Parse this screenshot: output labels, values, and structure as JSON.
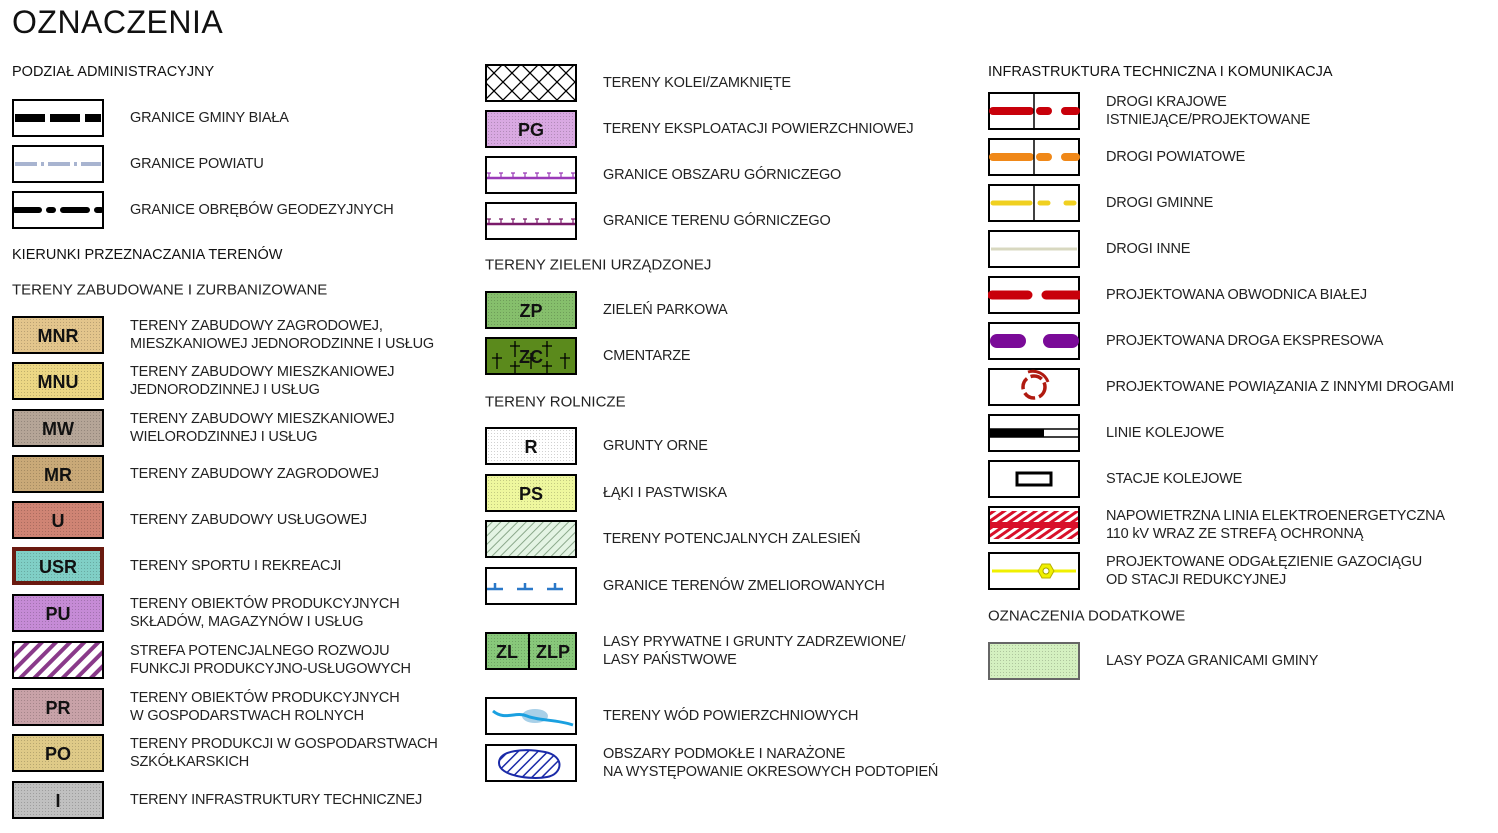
{
  "title": "OZNACZENIA",
  "columns": [
    [
      {
        "type": "header",
        "text": "PODZIAŁ ADMINISTRACYJNY"
      },
      {
        "type": "item",
        "swatch": "gmina-boundary-line",
        "label": "GRANICE GMINY BIAŁA"
      },
      {
        "type": "item",
        "swatch": "powiat-boundary-line",
        "label": "GRANICE POWIATU"
      },
      {
        "type": "item",
        "swatch": "precinct-boundary-line",
        "label": "GRANICE OBRĘBÓW GEODEZYJNYCH"
      },
      {
        "type": "header",
        "text": "KIERUNKI PRZEZNACZANIA TERENÓW"
      },
      {
        "type": "sub",
        "text": "TERENY ZABUDOWANE I ZURBANIZOWANE"
      },
      {
        "type": "item",
        "swatch": "fill",
        "code": "MNR",
        "color": "#e3c58c",
        "label": "TERENY ZABUDOWY ZAGRODOWEJ,\nMIESZKANIOWEJ JEDNORODZINNE I USŁUG"
      },
      {
        "type": "item",
        "swatch": "fill",
        "code": "MNU",
        "color": "#ecd784",
        "label": "TERENY ZABUDOWY MIESZKANIOWEJ\nJEDNORODZINNEJ I USŁUG"
      },
      {
        "type": "item",
        "swatch": "fill",
        "code": "MW",
        "color": "#b5a597",
        "label": "TERENY ZABUDOWY MIESZKANIOWEJ\nWIELORODZINNEJ I USŁUG"
      },
      {
        "type": "item",
        "swatch": "fill",
        "code": "MR",
        "color": "#c9a978",
        "label": "TERENY ZABUDOWY ZAGRODOWEJ"
      },
      {
        "type": "item",
        "swatch": "fill",
        "code": "U",
        "color": "#cf8474",
        "label": "TERENY ZABUDOWY USŁUGOWEJ"
      },
      {
        "type": "item",
        "swatch": "fill",
        "code": "USR",
        "color": "#80cfc6",
        "border": "#6a1a10",
        "label": "TERENY SPORTU I REKREACJI"
      },
      {
        "type": "item",
        "swatch": "fill",
        "code": "PU",
        "color": "#c68bd6",
        "label": "TERENY OBIEKTÓW PRODUKCYJNYCH\nSKŁADÓW, MAGAZYNÓW I USŁUG"
      },
      {
        "type": "item",
        "swatch": "purple-hatch",
        "color": "#8a3a8a",
        "label": "STREFA POTENCJALNEGO ROZWOJU\nFUNKCJI PRODUKCYJNO-USŁUGOWYCH"
      },
      {
        "type": "item",
        "swatch": "fill",
        "code": "PR",
        "color": "#c8a2a8",
        "label": "TERENY OBIEKTÓW PRODUKCYJNYCH\nW GOSPODARSTWACH ROLNYCH"
      },
      {
        "type": "item",
        "swatch": "fill",
        "code": "PO",
        "color": "#dfca88",
        "label": "TERENY PRODUKCJI W GOSPODARSTWACH\nSZKÓŁKARSKICH"
      },
      {
        "type": "item",
        "swatch": "fill",
        "code": "I",
        "color": "#c0c0c0",
        "label": "TERENY INFRASTRUKTURY TECHNICZNEJ"
      }
    ],
    [
      {
        "type": "item",
        "swatch": "crosshatch",
        "label": "TERENY KOLEI/ZAMKNIĘTE"
      },
      {
        "type": "item",
        "swatch": "fill",
        "code": "PG",
        "color": "#d9a9e2",
        "label": "TERENY EKSPLOATACJI POWIERZCHNIOWEJ"
      },
      {
        "type": "item",
        "swatch": "mining-area-line",
        "color": "#9a3ab8",
        "label": "GRANICE OBSZARU GÓRNICZEGO"
      },
      {
        "type": "item",
        "swatch": "mining-area-line",
        "color": "#7a1a6a",
        "label": "GRANICE TERENU GÓRNICZEGO"
      },
      {
        "type": "sub",
        "text": "TERENY ZIELENI URZĄDZONEJ"
      },
      {
        "type": "item",
        "swatch": "fill",
        "code": "ZP",
        "color": "#86bf6c",
        "label": "ZIELEŃ PARKOWA"
      },
      {
        "type": "item",
        "swatch": "cemetery",
        "code": "ZC",
        "color": "#5b8a1c",
        "label": "CMENTARZE"
      },
      {
        "type": "sub",
        "text": "TERENY ROLNICZE"
      },
      {
        "type": "item",
        "swatch": "fill",
        "code": "R",
        "color": "#ffffff",
        "label": "GRUNTY ORNE"
      },
      {
        "type": "item",
        "swatch": "fill",
        "code": "PS",
        "color": "#eef79e",
        "label": "ŁĄKI I PASTWISKA"
      },
      {
        "type": "item",
        "swatch": "green-hatch",
        "color": "#e4f4e4",
        "label": "TERENY POTENCJALNYCH ZALESIEŃ"
      },
      {
        "type": "item",
        "swatch": "meliorated-line",
        "color": "#2a78c8",
        "label": "GRANICE TERENÓW ZMELIOROWANYCH"
      },
      {
        "type": "item",
        "swatch": "split-fill",
        "codes": [
          "ZL",
          "ZLP"
        ],
        "color": "#88c87a",
        "label": "LASY PRYWATNE I GRUNTY ZADRZEWIONE/\nLASY PAŃSTWOWE"
      },
      {
        "type": "item",
        "swatch": "water",
        "color": "#1aa0e0",
        "label": "TERENY WÓD POWIERZCHNIOWYCH"
      },
      {
        "type": "item",
        "swatch": "wetland",
        "color": "#1a2aa8",
        "label": "OBSZARY PODMOKŁE I NARAŻONE\nNA WYSTĘPOWANIE OKRESOWYCH PODTOPIEŃ"
      }
    ],
    [
      {
        "type": "header",
        "text": "INFRASTRUKTURA TECHNICZNA I KOMUNIKACJA"
      },
      {
        "type": "item",
        "swatch": "road-split",
        "color": "#c8000a",
        "label": "DROGI KRAJOWE\nISTNIEJĄCE/PROJEKTOWANE"
      },
      {
        "type": "item",
        "swatch": "road-split",
        "color": "#f08818",
        "label": "DROGI POWIATOWE"
      },
      {
        "type": "item",
        "swatch": "road-split-thin",
        "color": "#f0d020",
        "label": "DROGI GMINNE"
      },
      {
        "type": "item",
        "swatch": "road-line",
        "color": "#d8d8c0",
        "label": "DROGI INNE"
      },
      {
        "type": "item",
        "swatch": "road-dashed",
        "color": "#c8000a",
        "label": "PROJEKTOWANA OBWODNICA BIAŁEJ"
      },
      {
        "type": "item",
        "swatch": "road-dashed-wide",
        "color": "#7a0a98",
        "label": "PROJEKTOWANA DROGA EKSPRESOWA"
      },
      {
        "type": "item",
        "swatch": "roundabout",
        "color": "#b01a10",
        "label": "PROJEKTOWANE POWIĄZANIA Z INNYMI DROGAMI"
      },
      {
        "type": "item",
        "swatch": "railway",
        "label": "LINIE KOLEJOWE"
      },
      {
        "type": "item",
        "swatch": "station",
        "label": "STACJE KOLEJOWE"
      },
      {
        "type": "item",
        "swatch": "power-line",
        "color": "#d8102a",
        "label": "NAPOWIETRZNA LINIA ELEKTROENERGETYCZNA\n110 kV WRAZ ZE STREFĄ OCHRONNĄ"
      },
      {
        "type": "item",
        "swatch": "gas-pipeline",
        "color": "#f0f000",
        "label": "PROJEKTOWANE ODGAŁĘZIENIE GAZOCIĄGU\nOD STACJI REDUKCYJNEJ"
      },
      {
        "type": "sub",
        "text": "OZNACZENIA DODATKOWE"
      },
      {
        "type": "item",
        "swatch": "fill",
        "code": "",
        "color": "#d4f0c0",
        "border": "#666",
        "label": "LASY POZA GRANICAMI GMINY"
      }
    ]
  ]
}
